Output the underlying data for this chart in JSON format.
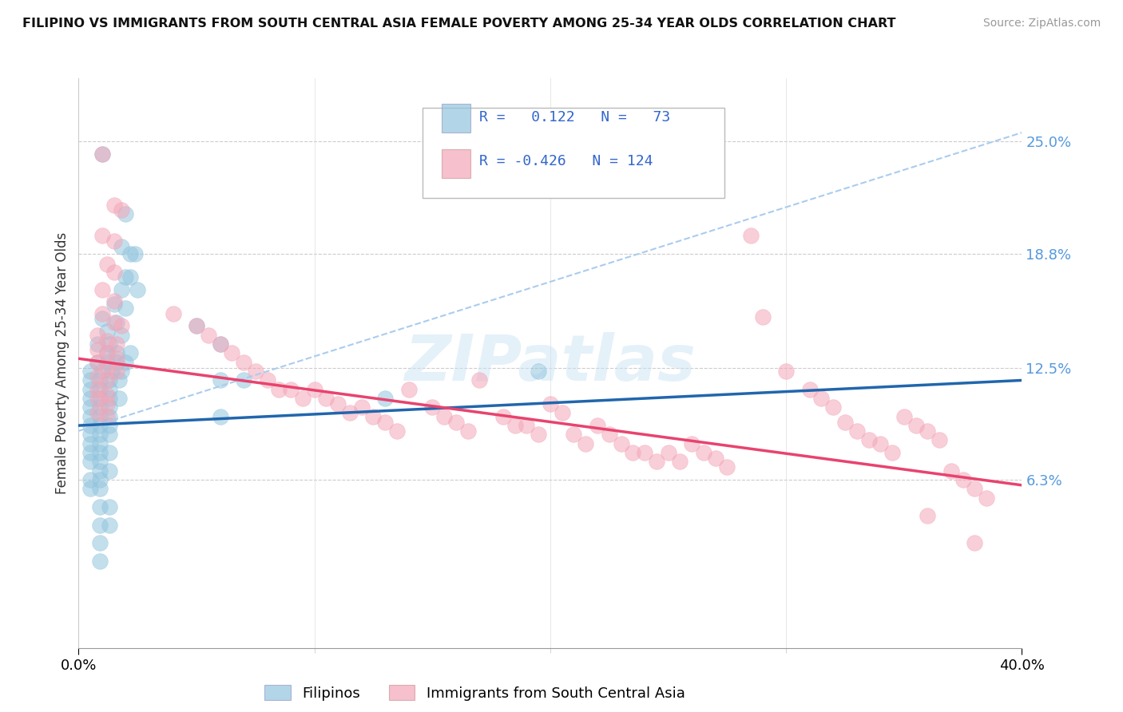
{
  "title": "FILIPINO VS IMMIGRANTS FROM SOUTH CENTRAL ASIA FEMALE POVERTY AMONG 25-34 YEAR OLDS CORRELATION CHART",
  "source": "Source: ZipAtlas.com",
  "ylabel": "Female Poverty Among 25-34 Year Olds",
  "ytick_labels": [
    "25.0%",
    "18.8%",
    "12.5%",
    "6.3%"
  ],
  "ytick_values": [
    0.25,
    0.188,
    0.125,
    0.063
  ],
  "xlim": [
    0.0,
    0.4
  ],
  "ylim": [
    -0.03,
    0.285
  ],
  "blue_color": "#92c5de",
  "pink_color": "#f4a6b8",
  "blue_line_color": "#2166ac",
  "pink_line_color": "#e8436e",
  "dash_color": "#aaccee",
  "watermark": "ZIPatlas",
  "legend_labels": [
    "Filipinos",
    "Immigrants from South Central Asia"
  ],
  "blue_scatter": [
    [
      0.01,
      0.243
    ],
    [
      0.02,
      0.21
    ],
    [
      0.018,
      0.192
    ],
    [
      0.022,
      0.188
    ],
    [
      0.024,
      0.188
    ],
    [
      0.02,
      0.175
    ],
    [
      0.022,
      0.175
    ],
    [
      0.018,
      0.168
    ],
    [
      0.025,
      0.168
    ],
    [
      0.015,
      0.16
    ],
    [
      0.02,
      0.158
    ],
    [
      0.01,
      0.152
    ],
    [
      0.016,
      0.15
    ],
    [
      0.012,
      0.145
    ],
    [
      0.018,
      0.143
    ],
    [
      0.008,
      0.138
    ],
    [
      0.013,
      0.138
    ],
    [
      0.012,
      0.133
    ],
    [
      0.016,
      0.133
    ],
    [
      0.022,
      0.133
    ],
    [
      0.008,
      0.128
    ],
    [
      0.012,
      0.128
    ],
    [
      0.016,
      0.128
    ],
    [
      0.02,
      0.128
    ],
    [
      0.005,
      0.123
    ],
    [
      0.01,
      0.123
    ],
    [
      0.014,
      0.123
    ],
    [
      0.018,
      0.123
    ],
    [
      0.005,
      0.118
    ],
    [
      0.009,
      0.118
    ],
    [
      0.013,
      0.118
    ],
    [
      0.017,
      0.118
    ],
    [
      0.005,
      0.113
    ],
    [
      0.009,
      0.113
    ],
    [
      0.013,
      0.113
    ],
    [
      0.005,
      0.108
    ],
    [
      0.009,
      0.108
    ],
    [
      0.013,
      0.108
    ],
    [
      0.017,
      0.108
    ],
    [
      0.005,
      0.103
    ],
    [
      0.009,
      0.103
    ],
    [
      0.013,
      0.103
    ],
    [
      0.005,
      0.098
    ],
    [
      0.009,
      0.098
    ],
    [
      0.013,
      0.098
    ],
    [
      0.005,
      0.093
    ],
    [
      0.009,
      0.093
    ],
    [
      0.013,
      0.093
    ],
    [
      0.005,
      0.088
    ],
    [
      0.009,
      0.088
    ],
    [
      0.013,
      0.088
    ],
    [
      0.005,
      0.083
    ],
    [
      0.009,
      0.083
    ],
    [
      0.005,
      0.078
    ],
    [
      0.009,
      0.078
    ],
    [
      0.013,
      0.078
    ],
    [
      0.005,
      0.073
    ],
    [
      0.009,
      0.073
    ],
    [
      0.009,
      0.068
    ],
    [
      0.013,
      0.068
    ],
    [
      0.005,
      0.063
    ],
    [
      0.009,
      0.063
    ],
    [
      0.005,
      0.058
    ],
    [
      0.009,
      0.058
    ],
    [
      0.009,
      0.048
    ],
    [
      0.013,
      0.048
    ],
    [
      0.009,
      0.038
    ],
    [
      0.013,
      0.038
    ],
    [
      0.009,
      0.028
    ],
    [
      0.009,
      0.018
    ],
    [
      0.05,
      0.148
    ],
    [
      0.06,
      0.138
    ],
    [
      0.06,
      0.118
    ],
    [
      0.07,
      0.118
    ],
    [
      0.06,
      0.098
    ],
    [
      0.13,
      0.108
    ],
    [
      0.195,
      0.123
    ]
  ],
  "pink_scatter": [
    [
      0.01,
      0.243
    ],
    [
      0.015,
      0.215
    ],
    [
      0.018,
      0.212
    ],
    [
      0.01,
      0.198
    ],
    [
      0.015,
      0.195
    ],
    [
      0.012,
      0.182
    ],
    [
      0.015,
      0.178
    ],
    [
      0.01,
      0.168
    ],
    [
      0.015,
      0.162
    ],
    [
      0.01,
      0.155
    ],
    [
      0.015,
      0.15
    ],
    [
      0.018,
      0.148
    ],
    [
      0.008,
      0.143
    ],
    [
      0.012,
      0.14
    ],
    [
      0.016,
      0.138
    ],
    [
      0.008,
      0.135
    ],
    [
      0.012,
      0.133
    ],
    [
      0.016,
      0.13
    ],
    [
      0.008,
      0.128
    ],
    [
      0.012,
      0.125
    ],
    [
      0.016,
      0.123
    ],
    [
      0.008,
      0.12
    ],
    [
      0.012,
      0.118
    ],
    [
      0.008,
      0.113
    ],
    [
      0.012,
      0.11
    ],
    [
      0.008,
      0.108
    ],
    [
      0.012,
      0.105
    ],
    [
      0.008,
      0.1
    ],
    [
      0.012,
      0.098
    ],
    [
      0.04,
      0.155
    ],
    [
      0.05,
      0.148
    ],
    [
      0.055,
      0.143
    ],
    [
      0.06,
      0.138
    ],
    [
      0.065,
      0.133
    ],
    [
      0.07,
      0.128
    ],
    [
      0.075,
      0.123
    ],
    [
      0.08,
      0.118
    ],
    [
      0.085,
      0.113
    ],
    [
      0.09,
      0.113
    ],
    [
      0.095,
      0.108
    ],
    [
      0.1,
      0.113
    ],
    [
      0.105,
      0.108
    ],
    [
      0.11,
      0.105
    ],
    [
      0.115,
      0.1
    ],
    [
      0.12,
      0.103
    ],
    [
      0.125,
      0.098
    ],
    [
      0.13,
      0.095
    ],
    [
      0.135,
      0.09
    ],
    [
      0.14,
      0.113
    ],
    [
      0.15,
      0.103
    ],
    [
      0.155,
      0.098
    ],
    [
      0.16,
      0.095
    ],
    [
      0.165,
      0.09
    ],
    [
      0.17,
      0.118
    ],
    [
      0.18,
      0.098
    ],
    [
      0.185,
      0.093
    ],
    [
      0.19,
      0.093
    ],
    [
      0.195,
      0.088
    ],
    [
      0.2,
      0.105
    ],
    [
      0.205,
      0.1
    ],
    [
      0.21,
      0.088
    ],
    [
      0.215,
      0.083
    ],
    [
      0.22,
      0.093
    ],
    [
      0.225,
      0.088
    ],
    [
      0.23,
      0.083
    ],
    [
      0.235,
      0.078
    ],
    [
      0.24,
      0.078
    ],
    [
      0.245,
      0.073
    ],
    [
      0.25,
      0.078
    ],
    [
      0.255,
      0.073
    ],
    [
      0.26,
      0.083
    ],
    [
      0.265,
      0.078
    ],
    [
      0.27,
      0.075
    ],
    [
      0.275,
      0.07
    ],
    [
      0.285,
      0.198
    ],
    [
      0.29,
      0.153
    ],
    [
      0.3,
      0.123
    ],
    [
      0.31,
      0.113
    ],
    [
      0.315,
      0.108
    ],
    [
      0.32,
      0.103
    ],
    [
      0.325,
      0.095
    ],
    [
      0.33,
      0.09
    ],
    [
      0.335,
      0.085
    ],
    [
      0.34,
      0.083
    ],
    [
      0.345,
      0.078
    ],
    [
      0.35,
      0.098
    ],
    [
      0.355,
      0.093
    ],
    [
      0.36,
      0.09
    ],
    [
      0.365,
      0.085
    ],
    [
      0.37,
      0.068
    ],
    [
      0.375,
      0.063
    ],
    [
      0.38,
      0.058
    ],
    [
      0.385,
      0.053
    ],
    [
      0.36,
      0.043
    ],
    [
      0.38,
      0.028
    ]
  ],
  "blue_trend_x": [
    0.0,
    0.4
  ],
  "blue_trend_y": [
    0.093,
    0.118
  ],
  "pink_trend_x": [
    0.0,
    0.4
  ],
  "pink_trend_y": [
    0.13,
    0.06
  ],
  "dash_trend_x": [
    0.0,
    0.4
  ],
  "dash_trend_y": [
    0.09,
    0.255
  ]
}
